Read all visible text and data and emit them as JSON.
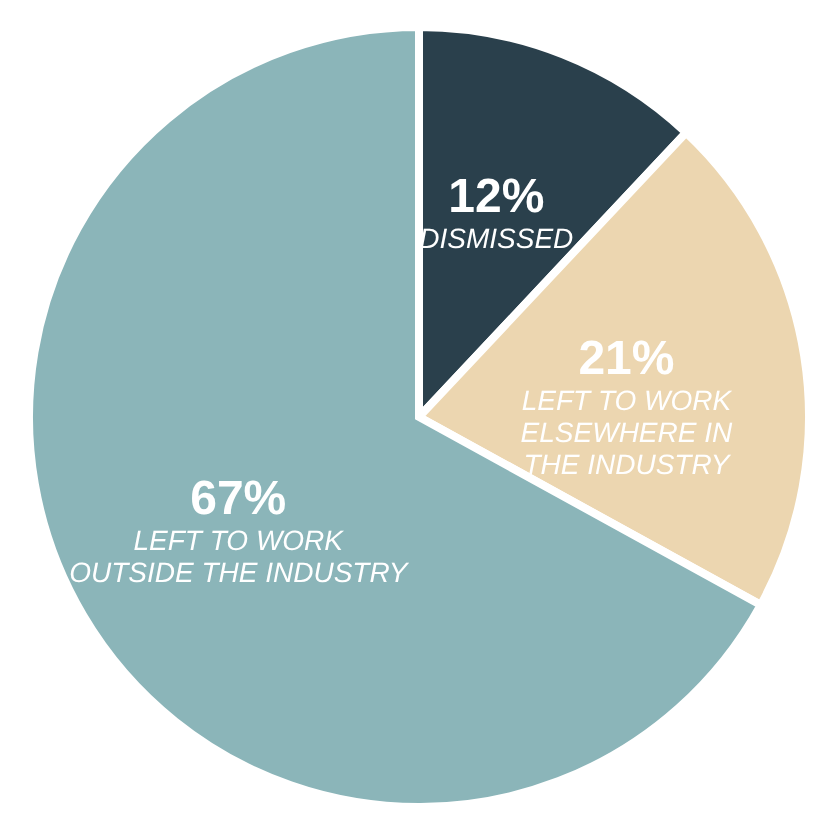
{
  "chart_data": {
    "type": "pie",
    "categories": [
      "DISMISSED",
      "LEFT TO WORK\nELSEWHERE IN\nTHE INDUSTRY",
      "LEFT TO WORK\nOUTSIDE THE INDUSTRY"
    ],
    "values": [
      12,
      21,
      67
    ],
    "colors": [
      "#2a404c",
      "#ecd6b0",
      "#8bb5b9"
    ],
    "value_labels": [
      "12%",
      "21%",
      "67%"
    ],
    "legend": false
  }
}
